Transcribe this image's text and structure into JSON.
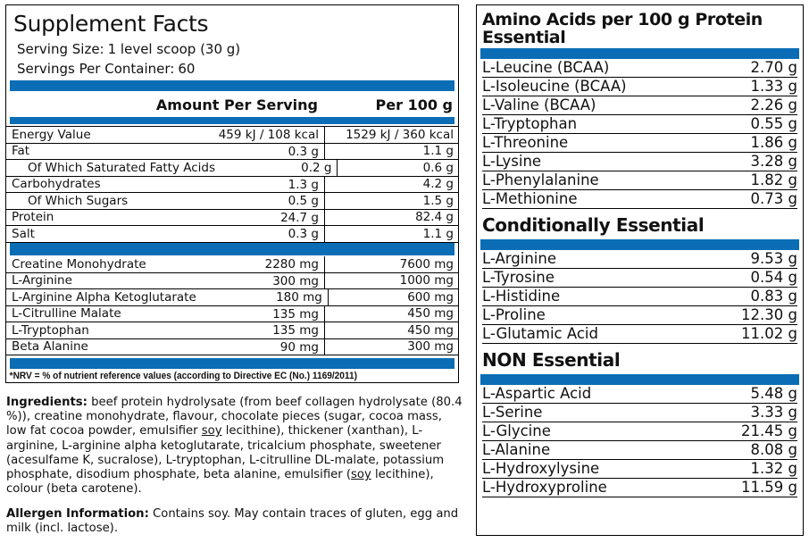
{
  "supplement_facts": {
    "title": "Supplement Facts",
    "serving_size": {
      "label": "Serving Size:",
      "value": "1 level scoop (30 g)"
    },
    "servings_per_container": {
      "label": "Servings Per Container:",
      "value": "60"
    },
    "header": [
      "Amount Per Serving",
      "Per 100 g"
    ],
    "nutrition_rows": [
      [
        "Energy Value",
        "459 kJ / 108 kcal",
        "1529 kJ / 360 kcal"
      ],
      [
        "Fat",
        "0.3 g",
        "1.1 g"
      ],
      [
        "Of Which Saturated Fatty Acids",
        "0.2 g",
        "0.6 g"
      ],
      [
        "Carbohydrates",
        "1.3 g",
        "4.2 g"
      ],
      [
        "Of Which Sugars",
        "0.5 g",
        "1.5 g"
      ],
      [
        "Protein",
        "24.7 g",
        "82.4 g"
      ],
      [
        "Salt",
        "0.3 g",
        "1.1 g"
      ]
    ],
    "ingredient_rows": [
      [
        "Creatine Monohydrate",
        "2280 mg",
        "7600 mg"
      ],
      [
        "L-Arginine",
        "300 mg",
        "1000 mg"
      ],
      [
        "L-Arginine Alpha Ketoglutarate",
        "180 mg",
        "600 mg"
      ],
      [
        "L-Citrulline Malate",
        "135 mg",
        "450 mg"
      ],
      [
        "L-Tryptophan",
        "135 mg",
        "450 mg"
      ],
      [
        "Beta Alanine",
        "90 mg",
        "300 mg"
      ]
    ],
    "footnote": "*NRV = % of nutrient reference values (according to Directive EC (No.) 1169/2011)"
  },
  "ingredients": {
    "label": "Ingredients:",
    "parts": [
      "beef protein hydrolysate (from beef collagen hydrolysate (80.4 %)), creatine monohydrate, flavour, chocolate pieces (sugar, cocoa mass, low fat cocoa powder, emulsifier ",
      "soy",
      " lecithine), thickener (xanthan), L-arginine, L-arginine alpha ketoglutarate, tricalcium phosphate, sweetener (acesulfame K, sucralose), L-tryptophan, L-citrulline DL-malate, potassium phosphate, disodium phosphate, beta alanine, emulsifier (",
      "soy",
      " lecithine), colour (beta carotene)."
    ]
  },
  "allergen": {
    "label": "Allergen Information:",
    "text": "Contains soy. May contain traces of gluten, egg and milk (incl. lactose)."
  },
  "amino_acids": {
    "title": "Amino Acids per 100 g Protein",
    "sections": [
      {
        "title": "Essential",
        "rows": [
          [
            "L-Leucine (BCAA)",
            "2.70 g"
          ],
          [
            "L-Isoleucine (BCAA)",
            "1.33 g"
          ],
          [
            "L-Valine (BCAA)",
            "2.26 g"
          ],
          [
            "L-Tryptophan",
            "0.55 g"
          ],
          [
            "L-Threonine",
            "1.86 g"
          ],
          [
            "L-Lysine",
            "3.28 g"
          ],
          [
            "L-Phenylalanine",
            "1.82 g"
          ],
          [
            "L-Methionine",
            "0.73 g"
          ]
        ]
      },
      {
        "title": "Conditionally Essential",
        "rows": [
          [
            "L-Arginine",
            "9.53 g"
          ],
          [
            "L-Tyrosine",
            "0.54 g"
          ],
          [
            "L-Histidine",
            "0.83 g"
          ],
          [
            "L-Proline",
            "12.30 g"
          ],
          [
            "L-Glutamic Acid",
            "11.02 g"
          ]
        ]
      },
      {
        "title": "NON Essential",
        "rows": [
          [
            "L-Aspartic Acid",
            "5.48 g"
          ],
          [
            "L-Serine",
            "3.33 g"
          ],
          [
            "L-Glycine",
            "21.45 g"
          ],
          [
            "L-Alanine",
            "8.08 g"
          ],
          [
            "L-Hydroxylysine",
            "1.32 g"
          ],
          [
            "L-Hydroxyproline",
            "11.59 g"
          ]
        ]
      }
    ]
  }
}
